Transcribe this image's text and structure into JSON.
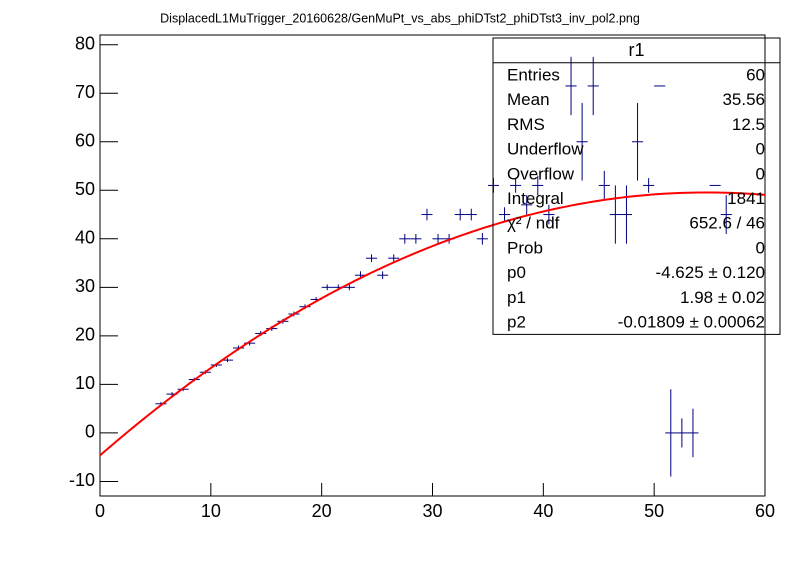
{
  "chart_data": {
    "type": "profile",
    "title": "DisplacedL1MuTrigger_20160628/GenMuPt_vs_abs_phiDTst2_phiDTst3_inv_pol2.png",
    "xlim": [
      0,
      60
    ],
    "xticks": [
      0,
      10,
      20,
      30,
      40,
      50,
      60
    ],
    "ylim": [
      -13,
      82
    ],
    "yticks": [
      -10,
      0,
      10,
      20,
      30,
      40,
      50,
      60,
      70,
      80
    ],
    "series": [
      {
        "color": "#000080",
        "x": [
          5.5,
          6.5,
          7.5,
          8.5,
          9.5,
          10.5,
          11.5,
          12.5,
          13.5,
          14.5,
          15.5,
          16.5,
          17.5,
          18.5,
          19.5,
          20.5,
          21.5,
          22.5,
          23.5,
          24.5,
          25.5,
          26.5,
          27.5,
          28.5,
          29.5,
          30.5,
          31.5,
          32.5,
          33.5,
          34.5,
          35.5,
          36.5,
          37.5,
          38.5,
          39.5,
          40.5,
          42.5,
          43.5,
          44.5,
          45.5,
          46.5,
          47.5,
          48.5,
          49.5,
          50.5,
          51.5,
          52.5,
          53.5,
          55.5,
          56.5
        ],
        "values": [
          6,
          8,
          9,
          11,
          12.5,
          14,
          15,
          17.5,
          18.5,
          20.5,
          21.5,
          23,
          24.5,
          26,
          27.5,
          30,
          30,
          30,
          32.5,
          36,
          32.5,
          36,
          40,
          40,
          45,
          40,
          40,
          45,
          45,
          40,
          51,
          45,
          51,
          47,
          51,
          45,
          71.5,
          60,
          71.5,
          51,
          45,
          45,
          60,
          51,
          71.5,
          0,
          0,
          0,
          51,
          45
        ],
        "errors": [
          0.4,
          0.4,
          0.4,
          0.4,
          0.4,
          0.4,
          0.4,
          0.5,
          0.5,
          0.5,
          0.5,
          0.5,
          0.5,
          0.5,
          0.5,
          0.6,
          0.6,
          0.6,
          0.8,
          0.8,
          0.8,
          0.8,
          1,
          1,
          1.2,
          1,
          1,
          1.2,
          1.2,
          1.2,
          1.5,
          1.5,
          1.5,
          2,
          2,
          2,
          6,
          8,
          6,
          3,
          6,
          6,
          8,
          1.5,
          0,
          9,
          3,
          5,
          0,
          4
        ]
      }
    ],
    "fit": {
      "color": "#ff0000",
      "params": [
        {
          "name": "p0",
          "value": -4.625,
          "label": "-4.625 ± 0.120"
        },
        {
          "name": "p1",
          "value": 1.98,
          "label": "1.98 ± 0.02"
        },
        {
          "name": "p2",
          "value": -0.01809,
          "label": "-0.01809 ± 0.00062"
        }
      ]
    },
    "stats": {
      "title": "r1",
      "rows": [
        [
          "Entries",
          "60"
        ],
        [
          "Mean",
          "35.56"
        ],
        [
          "RMS",
          "12.5"
        ],
        [
          "Underflow",
          "0"
        ],
        [
          "Overflow",
          "0"
        ],
        [
          "Integral",
          "1841"
        ],
        [
          "χ² / ndf",
          "652.6 / 46"
        ],
        [
          "Prob",
          "0"
        ]
      ]
    }
  }
}
